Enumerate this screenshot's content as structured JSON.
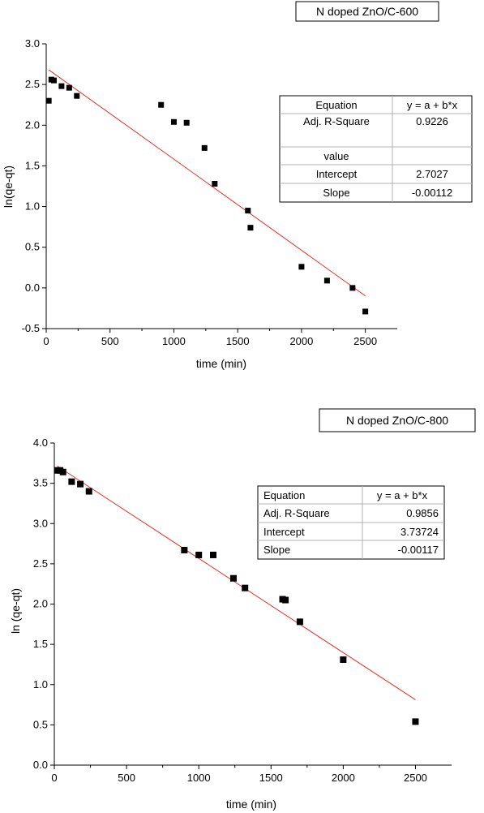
{
  "chart_data": [
    {
      "type": "scatter",
      "title": "N doped ZnO/C-600",
      "xlabel": "time (min)",
      "ylabel": "ln(qe-qt)",
      "xlim": [
        0,
        2750
      ],
      "ylim": [
        -0.5,
        3.0
      ],
      "xticks": [
        "0",
        "500",
        "1000",
        "1500",
        "2000",
        "2500"
      ],
      "yticks": [
        "-0.5",
        "0.0",
        "0.5",
        "1.0",
        "1.5",
        "2.0",
        "2.5",
        "3.0"
      ],
      "series": [
        {
          "x": [
            20,
            40,
            60,
            120,
            180,
            240,
            900,
            1000,
            1100,
            1240,
            1320,
            1580,
            1600,
            2000,
            2200,
            2400,
            2500
          ],
          "y": [
            2.3,
            2.56,
            2.55,
            2.48,
            2.46,
            2.36,
            2.25,
            2.04,
            2.03,
            1.72,
            1.28,
            0.95,
            0.74,
            0.26,
            0.09,
            0.0,
            -0.29
          ]
        }
      ],
      "fit_line": {
        "x": [
          20,
          2500
        ],
        "y": [
          2.68,
          -0.0973
        ]
      },
      "fit_table": {
        "rows": [
          [
            "Equation",
            "y = a + b*x"
          ],
          [
            "Adj. R-Square",
            "0.9226"
          ],
          [
            "",
            ""
          ],
          [
            "value",
            ""
          ],
          [
            "Intercept",
            "2.7027"
          ],
          [
            "Slope",
            "-0.00112"
          ]
        ]
      },
      "colors": {
        "marker": "#000000",
        "fit": "#e0302a"
      }
    },
    {
      "type": "scatter",
      "title": "N doped ZnO/C-800",
      "xlabel": "time (min)",
      "ylabel": "ln (qe-qt)",
      "xlim": [
        0,
        2750
      ],
      "ylim": [
        0.0,
        4.0
      ],
      "xticks": [
        "0",
        "500",
        "1000",
        "1500",
        "2000",
        "2500"
      ],
      "yticks": [
        "0.0",
        "0.5",
        "1.0",
        "1.5",
        "2.0",
        "2.5",
        "3.0",
        "3.5",
        "4.0"
      ],
      "series": [
        {
          "x": [
            20,
            40,
            60,
            120,
            180,
            240,
            900,
            1000,
            1100,
            1240,
            1320,
            1580,
            1600,
            1700,
            2000,
            2500
          ],
          "y": [
            3.66,
            3.66,
            3.64,
            3.52,
            3.49,
            3.4,
            2.67,
            2.61,
            2.61,
            2.32,
            2.2,
            2.06,
            2.05,
            1.78,
            1.31,
            0.54
          ]
        }
      ],
      "fit_line": {
        "x": [
          20,
          2500
        ],
        "y": [
          3.714,
          0.812
        ]
      },
      "fit_table": {
        "rows": [
          [
            "Equation",
            "y = a + b*x"
          ],
          [
            "Adj. R-Square",
            "0.9856"
          ],
          [
            "Intercept",
            "3.73724"
          ],
          [
            "Slope",
            "-0.00117"
          ]
        ]
      },
      "colors": {
        "marker": "#000000",
        "fit": "#e0302a"
      }
    }
  ]
}
